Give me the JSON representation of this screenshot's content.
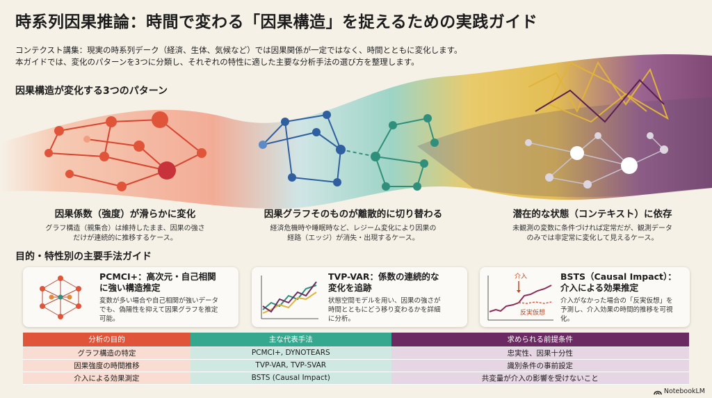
{
  "title": "時系列因果推論：時間で変わる「因果構造」を捉えるための実践ガイド",
  "intro": [
    "コンテクスト講集：現実の時系列デーク（経済、生体、気候など）では因果関係が一定ではなく、時間とともに変化します。",
    "本ガイドでは、変化のパターンを3つに分類し、それぞれの特性に適した主要な分析手法の選び方を整理します。"
  ],
  "section1": "因果構造が変化する3つのパターン",
  "patterns": [
    {
      "title": "因果係数（強度）が滑らかに変化",
      "desc": [
        "グラフ構造（親集合）は維持したまま、因果の強さ",
        "だけが連続的に推移するケース。"
      ]
    },
    {
      "title": "因果グラフそのものが離散的に切り替わる",
      "desc": [
        "経済危機時や睡眠時など、レジーム変化により因果の",
        "経路（エッジ）が消失・出現するケース。"
      ]
    },
    {
      "title": "潜在的な状態（コンテキスト）に依存",
      "desc": [
        "未観測の変数に条件づければ定常だが、観測データ",
        "のみでは非定常に変化して見えるケース。"
      ]
    }
  ],
  "section2": "目的・特性別の主要手法ガイド",
  "methods": [
    {
      "title": [
        "PCMCI+：高次元・自己相関",
        "に強い構造推定"
      ],
      "desc": [
        "変数が多い場合や自己相関が強いデータ",
        "でも、偽陽性を抑えて因果グラフを推定",
        "可能。"
      ]
    },
    {
      "title": [
        "TVP-VAR：係数の連続的な",
        "変化を追跡"
      ],
      "desc": [
        "状態空間モデルを用い、因果の強さが",
        "時間とともにどう移り変わるかを詳細",
        "に分析。"
      ]
    },
    {
      "title": [
        "BSTS（Causal Impact）：",
        "介入による効果推定"
      ],
      "desc": [
        "介入がなかった場合の「反実仮想」を",
        "予測し、介入効果の時間的推移を可視",
        "化。"
      ],
      "chart_labels": {
        "intervention": "介入",
        "counterfactual": "反実仮想"
      }
    }
  ],
  "table": {
    "headers": [
      "分析の目的",
      "主な代表手法",
      "求められる前提条件"
    ],
    "rows": [
      [
        "グラフ構造の特定",
        "PCMCI+, DYNOTEARS",
        "忠実性、因果十分性"
      ],
      [
        "因果強度の時間推移",
        "TVP-VAR, TVP-SVAR",
        "識別条件の事前設定"
      ],
      [
        "介入による効果測定",
        "BSTS (Causal Impact)",
        "共変量が介入の影響を受けないこと"
      ]
    ]
  },
  "logo": "NotebookLM",
  "colors": {
    "red": "#e0553a",
    "teal": "#36a88f",
    "purple": "#6b2b62",
    "gold": "#e0b43a",
    "blue": "#2f5f9e"
  }
}
